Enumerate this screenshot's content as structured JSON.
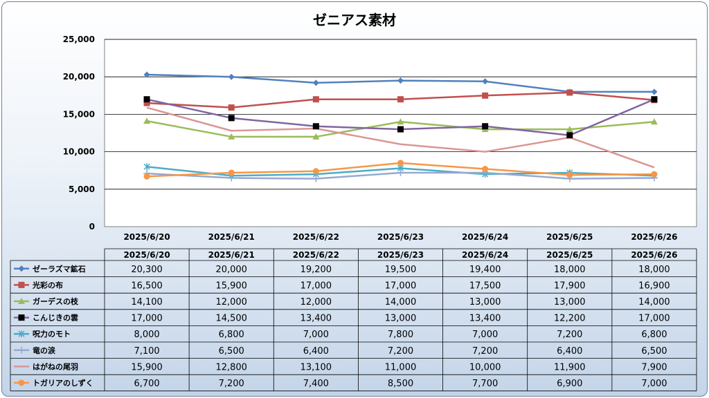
{
  "chart_data": {
    "type": "line",
    "title": "ゼニアス素材",
    "xlabel": "",
    "ylabel": "",
    "ylim": [
      0,
      25000
    ],
    "yticks": [
      "0",
      "5,000",
      "10,000",
      "15,000",
      "20,000",
      "25,000"
    ],
    "categories": [
      "2025/6/20",
      "2025/6/21",
      "2025/6/22",
      "2025/6/23",
      "2025/6/24",
      "2025/6/25",
      "2025/6/26"
    ],
    "grid": true,
    "legend": "data-table",
    "series": [
      {
        "name": "ゼーラズマ鉱石",
        "color": "#4f81bd",
        "marker": "diamond",
        "values": [
          20300,
          20000,
          19200,
          19500,
          19400,
          18000,
          18000
        ],
        "labels": [
          "20,300",
          "20,000",
          "19,200",
          "19,500",
          "19,400",
          "18,000",
          "18,000"
        ]
      },
      {
        "name": "光彩の布",
        "color": "#c0504d",
        "marker": "square",
        "values": [
          16500,
          15900,
          17000,
          17000,
          17500,
          17900,
          16900
        ],
        "labels": [
          "16,500",
          "15,900",
          "17,000",
          "17,000",
          "17,500",
          "17,900",
          "16,900"
        ]
      },
      {
        "name": "ガーデスの枝",
        "color": "#9bbb59",
        "marker": "triangle",
        "values": [
          14100,
          12000,
          12000,
          14000,
          13000,
          13000,
          14000
        ],
        "labels": [
          "14,100",
          "12,000",
          "12,000",
          "14,000",
          "13,000",
          "13,000",
          "14,000"
        ]
      },
      {
        "name": "こんじきの雲",
        "color": "#8064a2",
        "marker": "blacksquare",
        "values": [
          17000,
          14500,
          13400,
          13000,
          13400,
          12200,
          17000
        ],
        "labels": [
          "17,000",
          "14,500",
          "13,400",
          "13,000",
          "13,400",
          "12,200",
          "17,000"
        ]
      },
      {
        "name": "呪力のモト",
        "color": "#4bacc6",
        "marker": "star",
        "values": [
          8000,
          6800,
          7000,
          7800,
          7000,
          7200,
          6800
        ],
        "labels": [
          "8,000",
          "6,800",
          "7,000",
          "7,800",
          "7,000",
          "7,200",
          "6,800"
        ]
      },
      {
        "name": "竜の涙",
        "color": "#95a9d1",
        "marker": "plus",
        "values": [
          7100,
          6500,
          6400,
          7200,
          7200,
          6400,
          6500
        ],
        "labels": [
          "7,100",
          "6,500",
          "6,400",
          "7,200",
          "7,200",
          "6,400",
          "6,500"
        ]
      },
      {
        "name": "はがねの尾羽",
        "color": "#d99694",
        "marker": "none",
        "values": [
          15900,
          12800,
          13100,
          11000,
          10000,
          11900,
          7900
        ],
        "labels": [
          "15,900",
          "12,800",
          "13,100",
          "11,000",
          "10,000",
          "11,900",
          "7,900"
        ]
      },
      {
        "name": "トガリアのしずく",
        "color": "#f79646",
        "marker": "circle",
        "values": [
          6700,
          7200,
          7400,
          8500,
          7700,
          6900,
          7000
        ],
        "labels": [
          "6,700",
          "7,200",
          "7,400",
          "8,500",
          "7,700",
          "6,900",
          "7,000"
        ]
      }
    ]
  }
}
